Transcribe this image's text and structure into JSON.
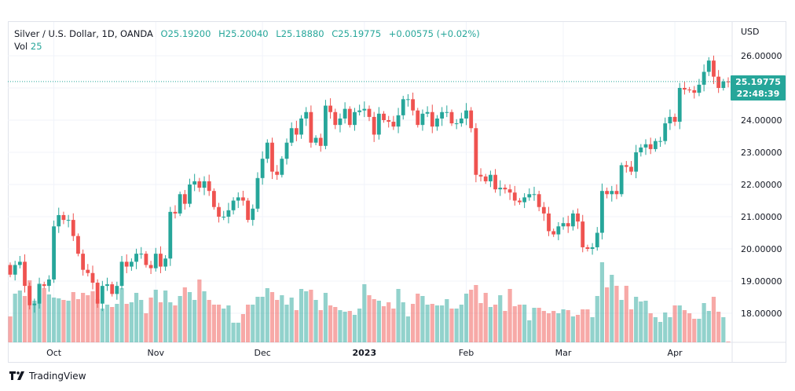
{
  "legend": {
    "title": "Silver / U.S. Dollar, 1D, OANDA",
    "open": "O25.19200",
    "high": "H25.20040",
    "low": "L25.18880",
    "close": "C25.19775",
    "change": "+0.00575 (+0.02%)",
    "vol_label": "Vol",
    "vol_value": "25"
  },
  "currency": "USD",
  "current_price": "25.19775",
  "countdown": "22:48:39",
  "brand": "TradingView",
  "colors": {
    "up": "#26a69a",
    "down": "#ef5350",
    "grid": "#f0f3fa"
  },
  "chart_data": {
    "type": "candlestick",
    "title": "Silver / U.S. Dollar, 1D, OANDA",
    "ylabel": "USD",
    "ylim": [
      17.2,
      27.1
    ],
    "y_ticks": [
      "26.00000",
      "24.00000",
      "23.00000",
      "22.00000",
      "21.00000",
      "20.00000",
      "19.00000",
      "18.00000"
    ],
    "y_tick_values": [
      26,
      24,
      23,
      22,
      21,
      20,
      19,
      18
    ],
    "x_ticks": [
      {
        "label": "Oct",
        "index": 9,
        "bold": false
      },
      {
        "label": "Nov",
        "index": 30,
        "bold": false
      },
      {
        "label": "Dec",
        "index": 52,
        "bold": false
      },
      {
        "label": "2023",
        "index": 73,
        "bold": true
      },
      {
        "label": "Feb",
        "index": 94,
        "bold": false
      },
      {
        "label": "Mar",
        "index": 114,
        "bold": false
      },
      {
        "label": "Apr",
        "index": 137,
        "bold": false
      }
    ],
    "first_open": 19.5,
    "close": [
      19.2,
      19.5,
      19.6,
      18.85,
      18.25,
      18.3,
      18.9,
      18.85,
      19.05,
      20.7,
      21.05,
      20.9,
      20.9,
      20.4,
      19.85,
      19.35,
      19.25,
      18.95,
      18.3,
      18.85,
      18.9,
      18.6,
      18.85,
      19.6,
      19.45,
      19.6,
      19.85,
      19.85,
      19.5,
      19.4,
      19.85,
      19.45,
      19.7,
      21.15,
      21.1,
      21.7,
      21.4,
      22.0,
      22.1,
      21.9,
      22.1,
      21.8,
      21.3,
      21.0,
      21.0,
      21.2,
      21.5,
      21.6,
      21.5,
      20.9,
      21.25,
      22.2,
      22.8,
      23.3,
      22.4,
      22.3,
      22.8,
      23.3,
      23.75,
      23.55,
      24.05,
      24.25,
      23.3,
      23.45,
      23.2,
      24.45,
      24.25,
      23.85,
      24.05,
      24.35,
      23.85,
      24.25,
      24.3,
      24.35,
      24.1,
      23.55,
      24.2,
      24.0,
      23.95,
      23.8,
      24.15,
      24.65,
      24.65,
      24.3,
      23.85,
      24.2,
      24.25,
      23.8,
      24.05,
      24.25,
      24.25,
      23.9,
      23.9,
      24.05,
      24.3,
      23.75,
      22.3,
      22.25,
      22.1,
      22.3,
      21.85,
      21.9,
      21.85,
      21.75,
      21.5,
      21.45,
      21.6,
      21.7,
      21.7,
      21.3,
      21.1,
      20.55,
      20.45,
      20.7,
      20.8,
      20.7,
      21.1,
      20.85,
      20.05,
      20.0,
      20.05,
      20.5,
      21.8,
      21.7,
      21.8,
      21.7,
      22.6,
      22.55,
      22.4,
      23.0,
      23.15,
      23.25,
      23.1,
      23.35,
      23.35,
      23.9,
      24.1,
      23.95,
      25.0,
      24.95,
      24.93,
      24.85,
      25.1,
      25.5,
      25.85,
      25.35,
      25.0,
      25.2,
      25.19775
    ],
    "volume": [
      33,
      62,
      66,
      59,
      79,
      53,
      75,
      69,
      61,
      57,
      56,
      54,
      53,
      64,
      55,
      63,
      60,
      65,
      55,
      43,
      48,
      45,
      49,
      69,
      49,
      51,
      63,
      54,
      37,
      57,
      67,
      51,
      66,
      51,
      47,
      59,
      70,
      64,
      54,
      80,
      65,
      54,
      48,
      48,
      43,
      47,
      25,
      25,
      36,
      48,
      48,
      58,
      58,
      69,
      64,
      54,
      60,
      48,
      57,
      41,
      68,
      65,
      67,
      54,
      41,
      63,
      47,
      45,
      41,
      39,
      40,
      35,
      43,
      74,
      60,
      55,
      53,
      46,
      51,
      43,
      68,
      51,
      33,
      49,
      62,
      59,
      48,
      49,
      47,
      47,
      55,
      43,
      43,
      48,
      62,
      67,
      73,
      50,
      63,
      45,
      48,
      60,
      40,
      68,
      46,
      48,
      48,
      28,
      44,
      44,
      40,
      37,
      40,
      37,
      42,
      41,
      33,
      35,
      42,
      42,
      32,
      59,
      102,
      70,
      86,
      72,
      54,
      72,
      42,
      58,
      52,
      53,
      37,
      32,
      26,
      38,
      32,
      47,
      47,
      41,
      37,
      30,
      30,
      50,
      40,
      58,
      39,
      32,
      1
    ]
  }
}
